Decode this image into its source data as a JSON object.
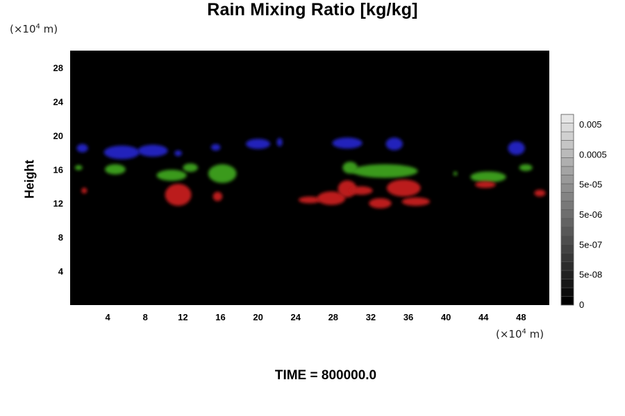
{
  "chart_data": {
    "type": "heatmap",
    "title": "Rain Mixing Ratio [kg/kg]",
    "ylabel": "Height",
    "xlabel": "",
    "y_unit": {
      "prefix": "(×10",
      "exp": "4",
      "suffix": " m)"
    },
    "x_unit": {
      "prefix": "(×10",
      "exp": "4",
      "suffix": " m)"
    },
    "xlim": [
      0,
      51
    ],
    "ylim": [
      0,
      30
    ],
    "x_ticks": [
      4,
      8,
      12,
      16,
      20,
      24,
      28,
      32,
      36,
      40,
      44,
      48
    ],
    "y_ticks": [
      4,
      8,
      12,
      16,
      20,
      24,
      28
    ],
    "x_tick_labels": [
      "4",
      "8",
      "12",
      "16",
      "20",
      "24",
      "28",
      "32",
      "36",
      "40",
      "44",
      "48"
    ],
    "y_tick_labels": [
      "4",
      "8",
      "12",
      "16",
      "20",
      "24",
      "28"
    ],
    "background_color": "#000000",
    "colorbar": {
      "labels": [
        "0.005",
        "0.0005",
        "5e-05",
        "5e-06",
        "5e-07",
        "5e-08",
        "0"
      ],
      "levels": 22
    },
    "series": [
      {
        "color": "#2222bb",
        "blobs": [
          {
            "x": 1.3,
            "y": 18.5,
            "rx": 0.6,
            "ry": 0.5
          },
          {
            "x": 5.5,
            "y": 18.0,
            "rx": 1.9,
            "ry": 0.8
          },
          {
            "x": 8.8,
            "y": 18.2,
            "rx": 1.6,
            "ry": 0.7
          },
          {
            "x": 11.5,
            "y": 17.9,
            "rx": 0.4,
            "ry": 0.35
          },
          {
            "x": 15.5,
            "y": 18.6,
            "rx": 0.5,
            "ry": 0.4
          },
          {
            "x": 20.0,
            "y": 19.0,
            "rx": 1.3,
            "ry": 0.6
          },
          {
            "x": 22.3,
            "y": 19.2,
            "rx": 0.3,
            "ry": 0.5
          },
          {
            "x": 29.5,
            "y": 19.1,
            "rx": 1.6,
            "ry": 0.65
          },
          {
            "x": 34.5,
            "y": 19.0,
            "rx": 0.9,
            "ry": 0.75
          },
          {
            "x": 47.5,
            "y": 18.5,
            "rx": 0.9,
            "ry": 0.8
          }
        ]
      },
      {
        "color": "#3a9a1a",
        "blobs": [
          {
            "x": 0.9,
            "y": 16.2,
            "rx": 0.4,
            "ry": 0.3
          },
          {
            "x": 4.8,
            "y": 16.0,
            "rx": 1.1,
            "ry": 0.6
          },
          {
            "x": 10.8,
            "y": 15.3,
            "rx": 1.6,
            "ry": 0.65
          },
          {
            "x": 12.8,
            "y": 16.2,
            "rx": 0.8,
            "ry": 0.5
          },
          {
            "x": 16.2,
            "y": 15.5,
            "rx": 1.5,
            "ry": 1.1
          },
          {
            "x": 29.8,
            "y": 16.2,
            "rx": 0.8,
            "ry": 0.7
          },
          {
            "x": 33.5,
            "y": 15.8,
            "rx": 3.5,
            "ry": 0.8
          },
          {
            "x": 44.5,
            "y": 15.1,
            "rx": 1.9,
            "ry": 0.65
          },
          {
            "x": 48.5,
            "y": 16.2,
            "rx": 0.7,
            "ry": 0.4
          },
          {
            "x": 41.0,
            "y": 15.5,
            "rx": 0.2,
            "ry": 0.25
          }
        ]
      },
      {
        "color": "#bb1b1b",
        "blobs": [
          {
            "x": 1.5,
            "y": 13.5,
            "rx": 0.3,
            "ry": 0.35
          },
          {
            "x": 11.5,
            "y": 13.0,
            "rx": 1.4,
            "ry": 1.3
          },
          {
            "x": 15.7,
            "y": 12.8,
            "rx": 0.5,
            "ry": 0.55
          },
          {
            "x": 25.5,
            "y": 12.4,
            "rx": 1.2,
            "ry": 0.4
          },
          {
            "x": 27.8,
            "y": 12.6,
            "rx": 1.5,
            "ry": 0.8
          },
          {
            "x": 29.5,
            "y": 13.7,
            "rx": 1.0,
            "ry": 1.0
          },
          {
            "x": 31.0,
            "y": 13.5,
            "rx": 1.2,
            "ry": 0.5
          },
          {
            "x": 33.0,
            "y": 12.0,
            "rx": 1.2,
            "ry": 0.6
          },
          {
            "x": 35.5,
            "y": 13.8,
            "rx": 1.8,
            "ry": 1.0
          },
          {
            "x": 36.8,
            "y": 12.2,
            "rx": 1.5,
            "ry": 0.5
          },
          {
            "x": 44.2,
            "y": 14.2,
            "rx": 1.1,
            "ry": 0.4
          },
          {
            "x": 50.0,
            "y": 13.2,
            "rx": 0.6,
            "ry": 0.4
          }
        ]
      }
    ]
  },
  "time_label": "TIME = 800000.0"
}
